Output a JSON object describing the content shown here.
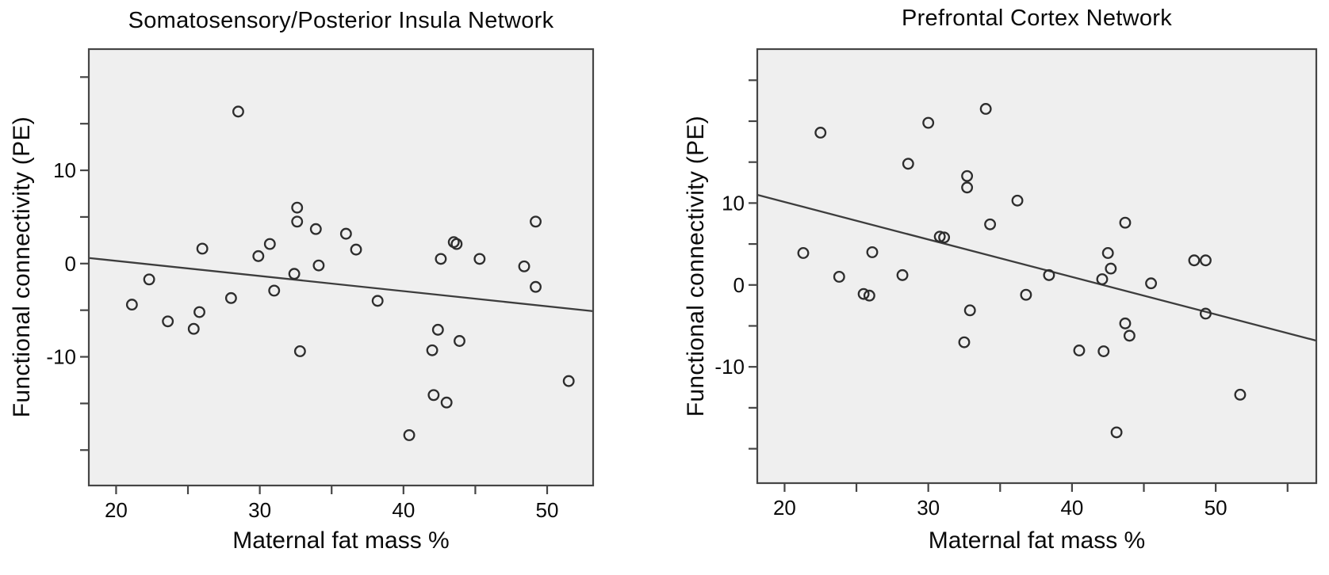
{
  "style": {
    "background": "#ffffff",
    "panel_background": "#efefef",
    "axis_color": "#454545",
    "marker_color": "#2d2d2d",
    "trend_color": "#3d3d3d",
    "text_color": "#0a0a0a"
  },
  "chart_data": [
    {
      "type": "scatter",
      "title": "Somatosensory/Posterior Insula Network",
      "xlabel": "Maternal fat mass %",
      "ylabel": "Functional connectivity (PE)",
      "xlim": [
        18.1,
        53.2
      ],
      "ylim": [
        -23.8,
        23.0
      ],
      "x_ticks": [
        20,
        25,
        30,
        35,
        40,
        45,
        50
      ],
      "x_labeled_ticks": [
        20,
        30,
        40,
        50
      ],
      "y_ticks": [
        -20,
        -15,
        -10,
        -5,
        0,
        5,
        10,
        15,
        20
      ],
      "y_labeled_ticks": [
        -10,
        0,
        10
      ],
      "grid": false,
      "legend": "none",
      "marker": "open-circle",
      "points": [
        [
          28.5,
          16.3
        ],
        [
          32.6,
          6.0
        ],
        [
          32.6,
          4.5
        ],
        [
          33.9,
          3.7
        ],
        [
          26.0,
          1.6
        ],
        [
          30.7,
          2.1
        ],
        [
          29.9,
          0.8
        ],
        [
          36.0,
          3.2
        ],
        [
          36.7,
          1.5
        ],
        [
          43.5,
          2.3
        ],
        [
          43.7,
          2.1
        ],
        [
          42.6,
          0.5
        ],
        [
          45.3,
          0.5
        ],
        [
          49.2,
          4.5
        ],
        [
          22.3,
          -1.7
        ],
        [
          21.1,
          -4.4
        ],
        [
          23.6,
          -6.2
        ],
        [
          25.8,
          -5.2
        ],
        [
          25.4,
          -7.0
        ],
        [
          28.0,
          -3.7
        ],
        [
          31.0,
          -2.9
        ],
        [
          32.4,
          -1.1
        ],
        [
          32.8,
          -9.4
        ],
        [
          34.1,
          -0.2
        ],
        [
          38.2,
          -4.0
        ],
        [
          42.4,
          -7.1
        ],
        [
          43.9,
          -8.3
        ],
        [
          42.0,
          -9.3
        ],
        [
          51.5,
          -12.6
        ],
        [
          42.1,
          -14.1
        ],
        [
          43.0,
          -14.9
        ],
        [
          40.4,
          -18.4
        ],
        [
          49.2,
          -2.5
        ],
        [
          48.4,
          -0.3
        ]
      ],
      "trend_line": {
        "x1": 18.1,
        "y1": 0.6,
        "x2": 53.2,
        "y2": -5.1
      }
    },
    {
      "type": "scatter",
      "title": "Prefrontal Cortex Network",
      "xlabel": "Maternal fat mass %",
      "ylabel": "Functional connectivity (PE)",
      "xlim": [
        18.1,
        57.0
      ],
      "ylim": [
        -24.2,
        28.8
      ],
      "x_ticks": [
        20,
        25,
        30,
        35,
        40,
        45,
        50,
        55
      ],
      "x_labeled_ticks": [
        20,
        30,
        40,
        50
      ],
      "y_ticks": [
        -20,
        -15,
        -10,
        -5,
        0,
        5,
        10,
        15,
        20,
        25
      ],
      "y_labeled_ticks": [
        -10,
        0,
        10
      ],
      "grid": false,
      "legend": "none",
      "marker": "open-circle",
      "points": [
        [
          22.5,
          18.6
        ],
        [
          30.0,
          19.8
        ],
        [
          34.0,
          21.5
        ],
        [
          28.6,
          14.8
        ],
        [
          32.7,
          13.3
        ],
        [
          32.7,
          11.9
        ],
        [
          36.2,
          10.3
        ],
        [
          34.3,
          7.4
        ],
        [
          30.8,
          5.9
        ],
        [
          31.1,
          5.8
        ],
        [
          21.3,
          3.9
        ],
        [
          26.1,
          4.0
        ],
        [
          43.7,
          7.6
        ],
        [
          42.5,
          3.9
        ],
        [
          48.5,
          3.0
        ],
        [
          49.3,
          3.0
        ],
        [
          23.8,
          1.0
        ],
        [
          25.5,
          -1.1
        ],
        [
          25.9,
          -1.3
        ],
        [
          28.2,
          1.2
        ],
        [
          32.9,
          -3.1
        ],
        [
          32.5,
          -7.0
        ],
        [
          36.8,
          -1.2
        ],
        [
          38.4,
          1.2
        ],
        [
          42.7,
          2.0
        ],
        [
          42.1,
          0.7
        ],
        [
          45.5,
          0.2
        ],
        [
          49.3,
          -3.5
        ],
        [
          43.7,
          -4.7
        ],
        [
          44.0,
          -6.2
        ],
        [
          40.5,
          -8.0
        ],
        [
          42.2,
          -8.1
        ],
        [
          51.7,
          -13.4
        ],
        [
          43.1,
          -18.0
        ]
      ],
      "trend_line": {
        "x1": 18.1,
        "y1": 11.0,
        "x2": 57.0,
        "y2": -6.8
      }
    }
  ]
}
